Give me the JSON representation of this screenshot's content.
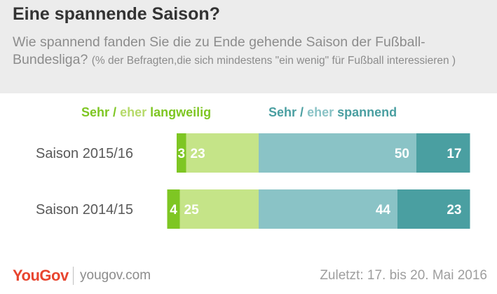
{
  "header": {
    "title": "Eine spannende Saison?",
    "subtitle_main": "Wie spannend fanden Sie die zu Ende gehende Saison der Fußball-Bundesliga?",
    "subtitle_note": "(% der Befragten,die sich mindestens \"ein wenig\" für Fußball interessieren )"
  },
  "legend": {
    "left": {
      "part1": "Sehr",
      "sep": "/",
      "part2": "eher",
      "part3": "langweilig"
    },
    "right": {
      "part1": "Sehr",
      "sep": "/",
      "part2": "eher",
      "part3": "spannend"
    }
  },
  "colors": {
    "very_boring": "#7ec623",
    "rather_boring": "#c5e488",
    "rather_exciting": "#8ac3c6",
    "very_exciting": "#4a9fa1",
    "legend_light_green": "#b6da6a",
    "legend_teal": "#4a9fa1",
    "legend_light_teal": "#8ac3c6"
  },
  "chart_data": {
    "type": "bar",
    "orientation": "horizontal-diverging",
    "categories": [
      "Saison 2015/16",
      "Saison 2014/15"
    ],
    "series": [
      {
        "name": "Sehr langweilig",
        "values": [
          3,
          4
        ]
      },
      {
        "name": "eher langweilig",
        "values": [
          23,
          25
        ]
      },
      {
        "name": "eher spannend",
        "values": [
          50,
          44
        ]
      },
      {
        "name": "Sehr spannend",
        "values": [
          17,
          23
        ]
      }
    ]
  },
  "footer": {
    "logo": "YouGov",
    "site": "yougov.com",
    "date": "Zuletzt: 17. bis 20. Mai 2016"
  }
}
